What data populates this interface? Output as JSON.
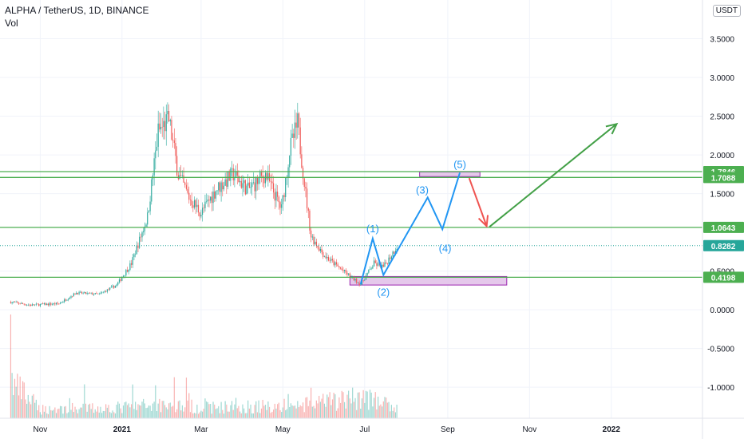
{
  "header": {
    "symbol": "ALPHA / TetherUS, 1D, BINANCE",
    "volume_label": "Vol",
    "currency": "USDT"
  },
  "chart_data": {
    "type": "candlestick",
    "title": "ALPHA / TetherUS, 1D, BINANCE",
    "yticks": [
      "3.5000",
      "3.0000",
      "2.5000",
      "2.0000",
      "1.5000",
      "0.5000",
      "0.0000",
      "-0.5000",
      "-1.0000"
    ],
    "ylim": [
      -1.4,
      4.0
    ],
    "xticks": [
      {
        "label": "Nov",
        "date": "2020-11-01"
      },
      {
        "label": "2021",
        "date": "2021-01-01"
      },
      {
        "label": "Mar",
        "date": "2021-03-01"
      },
      {
        "label": "May",
        "date": "2021-05-01"
      },
      {
        "label": "Jul",
        "date": "2021-07-01"
      },
      {
        "label": "Sep",
        "date": "2021-09-01"
      },
      {
        "label": "Nov",
        "date": "2021-11-01"
      },
      {
        "label": "2022",
        "date": "2022-01-01"
      }
    ],
    "xlim": [
      "2020-10-02",
      "2022-03-10"
    ],
    "price_path": [
      [
        "2020-10-10",
        0.1
      ],
      [
        "2020-10-25",
        0.06
      ],
      [
        "2020-11-15",
        0.08
      ],
      [
        "2020-11-28",
        0.22
      ],
      [
        "2020-12-15",
        0.2
      ],
      [
        "2020-12-28",
        0.32
      ],
      [
        "2021-01-08",
        0.6
      ],
      [
        "2021-01-20",
        1.2
      ],
      [
        "2021-01-28",
        2.3
      ],
      [
        "2021-02-05",
        2.45
      ],
      [
        "2021-02-12",
        1.75
      ],
      [
        "2021-02-20",
        1.45
      ],
      [
        "2021-03-01",
        1.25
      ],
      [
        "2021-03-12",
        1.55
      ],
      [
        "2021-03-25",
        1.75
      ],
      [
        "2021-04-05",
        1.55
      ],
      [
        "2021-04-18",
        1.75
      ],
      [
        "2021-04-30",
        1.3
      ],
      [
        "2021-05-06",
        2.05
      ],
      [
        "2021-05-12",
        2.4
      ],
      [
        "2021-05-18",
        1.5
      ],
      [
        "2021-05-22",
        0.95
      ],
      [
        "2021-06-01",
        0.7
      ],
      [
        "2021-06-15",
        0.5
      ],
      [
        "2021-06-28",
        0.33
      ],
      [
        "2021-07-08",
        0.6
      ],
      [
        "2021-07-15",
        0.55
      ],
      [
        "2021-07-25",
        0.82
      ]
    ],
    "volume_profile": [
      [
        "2020-10-10",
        1.0
      ],
      [
        "2020-11-01",
        0.25
      ],
      [
        "2021-01-01",
        0.3
      ],
      [
        "2021-02-01",
        0.4
      ],
      [
        "2021-03-01",
        0.3
      ],
      [
        "2021-05-15",
        0.35
      ],
      [
        "2021-07-01",
        0.6
      ],
      [
        "2021-07-25",
        0.25
      ]
    ],
    "levels": [
      {
        "value": 1.7846,
        "label": "1.7846",
        "color": "#4caf50"
      },
      {
        "value": 1.7088,
        "label": "1.7088",
        "color": "#4caf50"
      },
      {
        "value": 1.0643,
        "label": "1.0643",
        "color": "#4caf50"
      },
      {
        "value": 0.8282,
        "label": "0.8282",
        "color": "#26a69a",
        "style": "dotted"
      },
      {
        "value": 0.4198,
        "label": "0.4198",
        "color": "#4caf50"
      }
    ],
    "zones": [
      {
        "x0": "2021-06-20",
        "x1": "2021-10-15",
        "y0": 0.32,
        "y1": 0.43,
        "color": "#e1bee7"
      },
      {
        "x0": "2021-08-11",
        "x1": "2021-09-25",
        "y0": 1.72,
        "y1": 1.78,
        "color": "#e1bee7"
      }
    ],
    "wave_path": [
      [
        "2021-06-28",
        0.33
      ],
      [
        "2021-07-07",
        0.92
      ],
      [
        "2021-07-15",
        0.45
      ],
      [
        "2021-08-17",
        1.45
      ],
      [
        "2021-08-28",
        1.04
      ],
      [
        "2021-09-10",
        1.77
      ]
    ],
    "wave_labels": [
      {
        "label": "(1)",
        "date": "2021-07-07",
        "value": 1.0
      },
      {
        "label": "(2)",
        "date": "2021-07-15",
        "value": 0.18
      },
      {
        "label": "(3)",
        "date": "2021-08-13",
        "value": 1.5
      },
      {
        "label": "(4)",
        "date": "2021-08-30",
        "value": 0.75
      },
      {
        "label": "(5)",
        "date": "2021-09-10",
        "value": 1.83
      }
    ],
    "drop_arrow": [
      [
        "2021-09-17",
        1.7
      ],
      [
        "2021-09-30",
        1.08
      ]
    ],
    "rise_arrow": [
      [
        "2021-10-02",
        1.07
      ],
      [
        "2022-01-05",
        2.4
      ]
    ]
  }
}
